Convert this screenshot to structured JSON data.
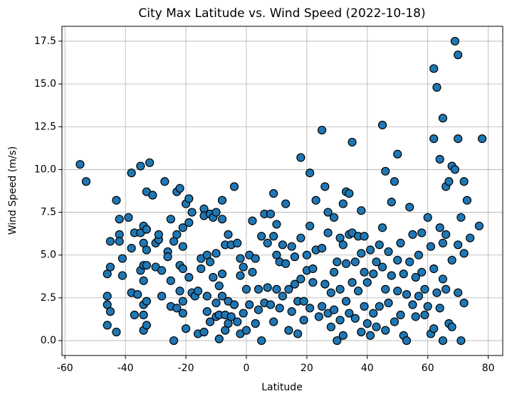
{
  "chart_data": {
    "type": "scatter",
    "title": "City Max Latitude vs. Wind Speed (2022-10-18)",
    "x_label": "Latitude",
    "y_label": "Wind Speed (m/s)",
    "xlim": [
      -61,
      84.8
    ],
    "ylim": [
      -0.87,
      18.37
    ],
    "xticks": [
      -60,
      -40,
      -20,
      0,
      20,
      40,
      60,
      80
    ],
    "yticks": [
      {
        "value": 0,
        "label": "0.0"
      },
      2.5,
      {
        "value": 5,
        "label": "5.0"
      },
      7.5,
      {
        "value": 10,
        "label": "10.0"
      },
      12.5,
      {
        "value": 15,
        "label": "15.0"
      },
      17.5
    ],
    "grid": true,
    "series": [
      {
        "color": "#1f77b4",
        "x": [
          -55,
          -53,
          -46,
          -46,
          -46,
          -46,
          -45,
          -45,
          -45,
          -43,
          -43,
          -42,
          -42,
          -42,
          -41,
          -41,
          -39,
          -38,
          -38,
          -38,
          -37,
          -37,
          -36,
          -35,
          -35,
          -35,
          -34,
          -34,
          -34,
          -34,
          -34,
          -34,
          -34,
          -33,
          -33,
          -33,
          -33,
          -33,
          -33,
          -32,
          -31,
          -30,
          -30,
          -29,
          -29,
          -28,
          -28,
          -27,
          -26,
          -26,
          -25,
          -25,
          -25,
          -24,
          -24,
          -23,
          -23,
          -23,
          -22,
          -22,
          -22,
          -21,
          -21,
          -21,
          -21,
          -21,
          -20,
          -20,
          -19,
          -19,
          -19,
          -18,
          -18,
          -17,
          -16,
          -16,
          -15,
          -15,
          -14,
          -14,
          -14,
          -13,
          -13,
          -13,
          -12,
          -12,
          -12,
          -11,
          -11,
          -10,
          -10,
          -10,
          -10,
          -9,
          -9,
          -9,
          -8,
          -8,
          -8,
          -8,
          -7,
          -7,
          -7,
          -6,
          -6,
          -6,
          -5,
          -5,
          -4,
          -4,
          -3,
          -3,
          -2,
          -2,
          -2,
          -1,
          -1,
          0,
          0,
          1,
          1,
          2,
          2,
          3,
          3,
          4,
          4,
          5,
          5,
          6,
          6,
          7,
          7,
          8,
          8,
          9,
          9,
          9,
          10,
          10,
          10,
          11,
          11,
          12,
          12,
          13,
          13,
          14,
          14,
          15,
          15,
          16,
          16,
          17,
          17,
          18,
          18,
          18,
          19,
          19,
          20,
          20,
          21,
          21,
          21,
          22,
          22,
          23,
          23,
          24,
          25,
          25,
          25,
          26,
          26,
          27,
          27,
          27,
          28,
          28,
          29,
          29,
          29,
          30,
          30,
          31,
          31,
          31,
          32,
          32,
          32,
          33,
          33,
          33,
          34,
          34,
          34,
          35,
          35,
          35,
          36,
          36,
          37,
          37,
          38,
          38,
          38,
          39,
          39,
          39,
          40,
          40,
          41,
          41,
          42,
          42,
          43,
          43,
          44,
          44,
          45,
          45,
          45,
          46,
          46,
          46,
          47,
          47,
          48,
          48,
          49,
          49,
          50,
          50,
          50,
          51,
          51,
          52,
          52,
          53,
          53,
          54,
          54,
          55,
          55,
          56,
          56,
          57,
          57,
          58,
          58,
          59,
          59,
          60,
          60,
          61,
          61,
          62,
          62,
          62,
          62,
          63,
          63,
          64,
          64,
          64,
          65,
          65,
          65,
          65,
          66,
          66,
          66,
          67,
          67,
          68,
          68,
          68,
          69,
          69,
          70,
          70,
          70,
          70,
          71,
          71,
          72,
          72,
          72,
          73,
          74,
          77,
          78
        ],
        "values": [
          10.3,
          9.3,
          3.9,
          2.6,
          2.1,
          0.9,
          4.3,
          5.8,
          1.7,
          8.2,
          0.5,
          7.1,
          6.2,
          5.8,
          4.8,
          3.8,
          7.2,
          9.8,
          5.4,
          2.8,
          6.3,
          1.5,
          2.7,
          10.2,
          6.3,
          4.1,
          6.7,
          5.7,
          4.4,
          3.5,
          2.1,
          1.5,
          0.6,
          8.7,
          6.5,
          5.3,
          4.4,
          2.3,
          0.9,
          10.4,
          8.5,
          5.7,
          4.3,
          5.9,
          6.2,
          4.1,
          2.6,
          9.3,
          5.2,
          4.9,
          7.1,
          3.5,
          2.0,
          5.8,
          0,
          6.2,
          8.7,
          1.9,
          8.9,
          4.4,
          2.9,
          6.6,
          5.5,
          4.2,
          2.3,
          1.6,
          8.0,
          0.7,
          8.3,
          3.7,
          6.9,
          7.5,
          2.8,
          2.6,
          2.9,
          0.4,
          4.8,
          4.2,
          7.7,
          7.3,
          0.5,
          5.0,
          2.6,
          1.7,
          7.4,
          4.6,
          1.1,
          3.7,
          7.2,
          7.5,
          5.1,
          2.2,
          1.4,
          0.1,
          3.2,
          1.5,
          2.6,
          3.9,
          8.2,
          7.1,
          5.6,
          1.5,
          0.6,
          6.2,
          2.3,
          1.0,
          5.6,
          1.4,
          9.0,
          2.1,
          5.7,
          1.1,
          4.8,
          3.8,
          0.4,
          4.3,
          1.6,
          3.0,
          0.6,
          5.0,
          2.1,
          4.0,
          7.0,
          4.8,
          1.0,
          3.0,
          1.8,
          6.1,
          0,
          2.2,
          7.4,
          5.7,
          3.1,
          7.4,
          2.1,
          6.1,
          8.6,
          1.1,
          5.0,
          6.8,
          3.0,
          4.6,
          1.9,
          5.6,
          2.6,
          8.0,
          4.5,
          3.0,
          0.6,
          5.5,
          1.7,
          3.3,
          4.9,
          2.3,
          0.4,
          10.7,
          6.0,
          3.6,
          2.3,
          1.2,
          5.0,
          4.1,
          9.8,
          6.7,
          1.9,
          4.2,
          3.4,
          8.2,
          5.3,
          1.4,
          12.3,
          5.4,
          2.0,
          9.0,
          3.3,
          7.5,
          6.3,
          1.6,
          2.8,
          0.8,
          7.2,
          4.0,
          1.8,
          4.6,
          0,
          6.0,
          3.0,
          1.2,
          8.0,
          5.6,
          0.3,
          8.7,
          4.5,
          2.3,
          6.2,
          8.6,
          1.6,
          11.6,
          3.4,
          6.3,
          4.6,
          1.3,
          6.1,
          2.9,
          7.6,
          5.1,
          0.5,
          6.1,
          4.0,
          2.0,
          3.4,
          1.0,
          5.3,
          0.3,
          3.9,
          1.6,
          4.6,
          0.8,
          5.6,
          2.0,
          12.6,
          6.6,
          4.3,
          9.9,
          3.0,
          0.6,
          5.2,
          2.2,
          8.1,
          3.8,
          9.3,
          1.1,
          10.9,
          4.7,
          2.9,
          5.7,
          1.5,
          3.9,
          0.3,
          2.7,
          0,
          7.8,
          4.6,
          6.2,
          2.1,
          1.4,
          3.7,
          5.0,
          2.6,
          6.3,
          4.0,
          3.0,
          1.5,
          7.2,
          2.0,
          5.5,
          0.4,
          15.9,
          11.8,
          4.2,
          0.7,
          14.8,
          2.8,
          10.6,
          6.6,
          1.9,
          13.0,
          5.7,
          3.6,
          0,
          9.0,
          6.2,
          3.0,
          9.3,
          1.0,
          10.2,
          4.7,
          0.8,
          17.5,
          10.0,
          16.7,
          11.8,
          5.6,
          2.8,
          7.2,
          0,
          9.3,
          5.1,
          2.2,
          8.2,
          6.0,
          6.7,
          11.8
        ]
      }
    ]
  }
}
